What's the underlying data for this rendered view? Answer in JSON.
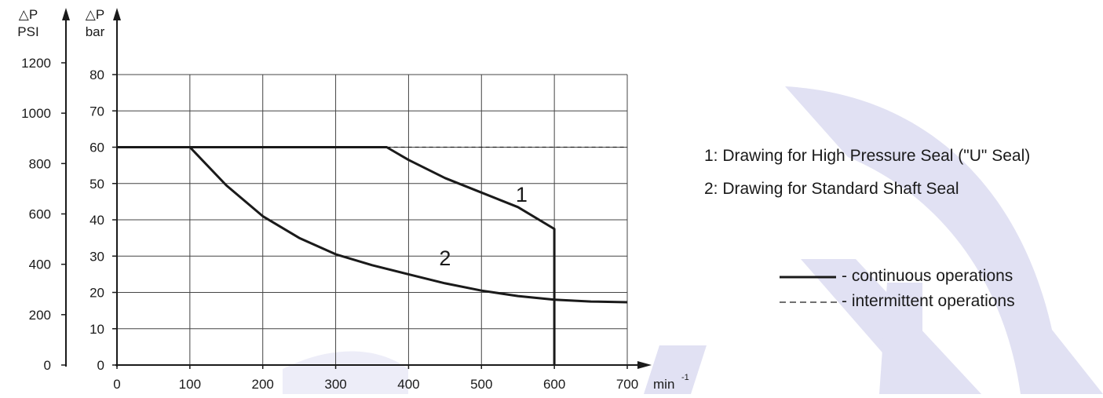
{
  "chart_data": {
    "type": "line",
    "xlabel": "min",
    "xlabel_sup": "-1",
    "ylabel_bar_top": "△P",
    "ylabel_bar_bottom": "bar",
    "ylabel_psi_top": "△P",
    "ylabel_psi_bottom": "PSI",
    "xlim": [
      0,
      700
    ],
    "ylim_bar": [
      0,
      80
    ],
    "ylim_psi": [
      0,
      1200
    ],
    "x_ticks": [
      0,
      100,
      200,
      300,
      400,
      500,
      600,
      700
    ],
    "y_ticks_bar": [
      0,
      10,
      20,
      30,
      40,
      50,
      60,
      70,
      80
    ],
    "y_ticks_psi": [
      0,
      200,
      400,
      600,
      800,
      1000,
      1200
    ],
    "grid": true,
    "series": [
      {
        "name": "1",
        "style": "continuous",
        "x": [
          0,
          370,
          400,
          450,
          500,
          550,
          600,
          600
        ],
        "y": [
          60,
          60,
          56.5,
          51.5,
          47.5,
          43.5,
          37.5,
          0
        ]
      },
      {
        "name": "2",
        "style": "continuous",
        "x": [
          0,
          100,
          150,
          200,
          250,
          300,
          350,
          400,
          450,
          500,
          550,
          600,
          650,
          700
        ],
        "y": [
          60,
          60,
          49.5,
          41,
          35,
          30.5,
          27.5,
          25,
          22.5,
          20.5,
          19,
          18,
          17.5,
          17.3
        ]
      },
      {
        "name": "",
        "style": "intermittent",
        "x": [
          370,
          700
        ],
        "y": [
          60,
          60
        ]
      }
    ],
    "curve_labels": [
      {
        "text": "1",
        "x": 555,
        "y": 45
      },
      {
        "text": "2",
        "x": 450,
        "y": 27.5
      }
    ],
    "notes": [
      "1: Drawing for High Pressure Seal (\"U\" Seal)",
      "2: Drawing for Standard Shaft Seal"
    ],
    "legend": {
      "placement": "right",
      "continuous": "- continuous operations",
      "intermittent": "- intermittent operations"
    },
    "colors": {
      "line": "#1a1a1a",
      "grid": "#444444",
      "watermark": "#e1e1f3"
    }
  }
}
